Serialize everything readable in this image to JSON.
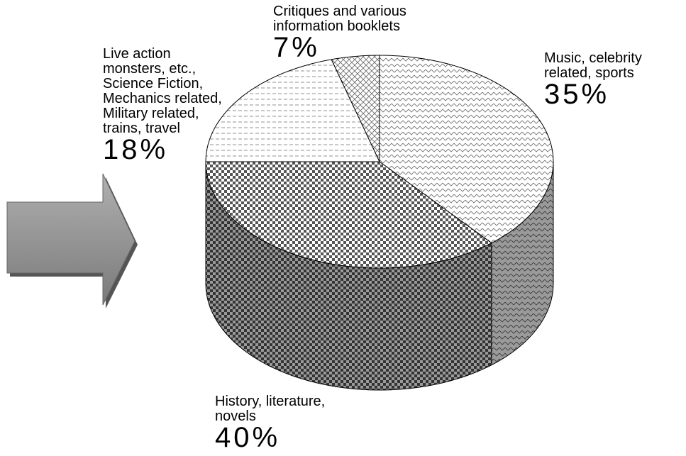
{
  "chart_data": {
    "type": "pie3d",
    "categories": [
      "Music, celebrity\nrelated, sports",
      "History, literature,\nnovels",
      "Live action\nmonsters, etc.,\nScience Fiction,\nMechanics related,\nMilitary related,\ntrains, travel",
      "Critiques and various\ninformation booklets"
    ],
    "values": [
      35,
      40,
      18,
      7
    ],
    "value_labels": [
      "35%",
      "40%",
      "18%",
      "7%"
    ],
    "colors": [
      "#666666",
      "#555555",
      "#777777",
      "#666666"
    ]
  }
}
